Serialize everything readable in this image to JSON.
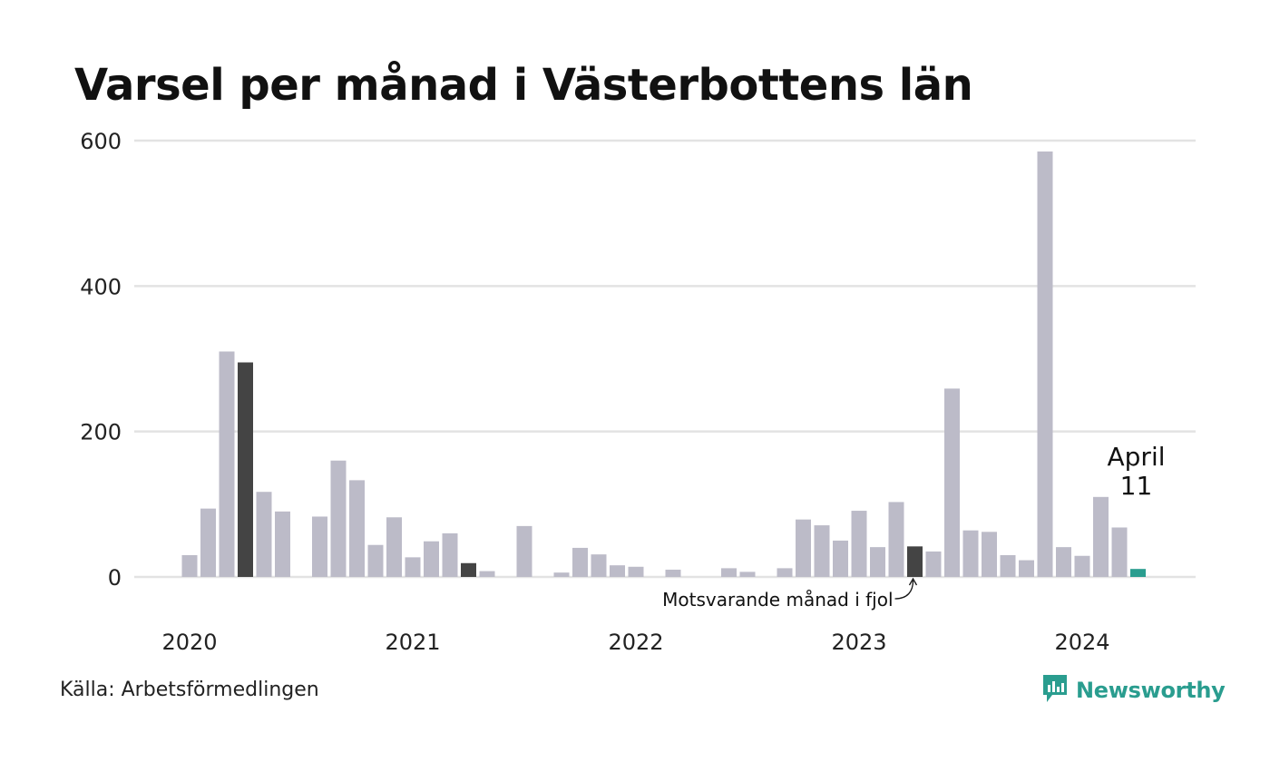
{
  "title": "Varsel per månad i Västerbottens län",
  "source": "Källa: Arbetsförmedlingen",
  "brand": {
    "name": "Newsworthy",
    "icon": "newsworthy-logo-icon",
    "color": "#2a9d8f"
  },
  "chart_data": {
    "type": "bar",
    "title": "Varsel per månad i Västerbottens län",
    "xlabel": "",
    "ylabel": "",
    "ylim": [
      0,
      600
    ],
    "yticks": [
      0,
      200,
      400,
      600
    ],
    "xticks": [
      {
        "label": "2020",
        "index": 0
      },
      {
        "label": "2021",
        "index": 12
      },
      {
        "label": "2022",
        "index": 24
      },
      {
        "label": "2023",
        "index": 36
      },
      {
        "label": "2024",
        "index": 48
      }
    ],
    "grid": true,
    "colors": {
      "default": "#bcbbc8",
      "highlight": "#444444",
      "current": "#2a9d8f",
      "grid": "#e3e3e3"
    },
    "start": "2020-01",
    "months": [
      "2020-01",
      "2020-02",
      "2020-03",
      "2020-04",
      "2020-05",
      "2020-06",
      "2020-07",
      "2020-08",
      "2020-09",
      "2020-10",
      "2020-11",
      "2020-12",
      "2021-01",
      "2021-02",
      "2021-03",
      "2021-04",
      "2021-05",
      "2021-06",
      "2021-07",
      "2021-08",
      "2021-09",
      "2021-10",
      "2021-11",
      "2021-12",
      "2022-01",
      "2022-02",
      "2022-03",
      "2022-04",
      "2022-05",
      "2022-06",
      "2022-07",
      "2022-08",
      "2022-09",
      "2022-10",
      "2022-11",
      "2022-12",
      "2023-01",
      "2023-02",
      "2023-03",
      "2023-04",
      "2023-05",
      "2023-06",
      "2023-07",
      "2023-08",
      "2023-09",
      "2023-10",
      "2023-11",
      "2023-12",
      "2024-01",
      "2024-02",
      "2024-03",
      "2024-04"
    ],
    "values": [
      30,
      94,
      310,
      295,
      117,
      90,
      0,
      83,
      160,
      133,
      44,
      82,
      27,
      49,
      60,
      19,
      8,
      0,
      70,
      0,
      6,
      40,
      31,
      16,
      14,
      0,
      10,
      0,
      0,
      12,
      7,
      0,
      12,
      79,
      71,
      50,
      91,
      41,
      103,
      42,
      35,
      259,
      64,
      62,
      30,
      23,
      585,
      41,
      29,
      110,
      68,
      11
    ],
    "highlight_indices": [
      3,
      15,
      39
    ],
    "current_index": 51,
    "annotations": {
      "current_month_name": "April",
      "current_value_label": "11",
      "last_year_label": "Motsvarande månad i fjol"
    }
  }
}
